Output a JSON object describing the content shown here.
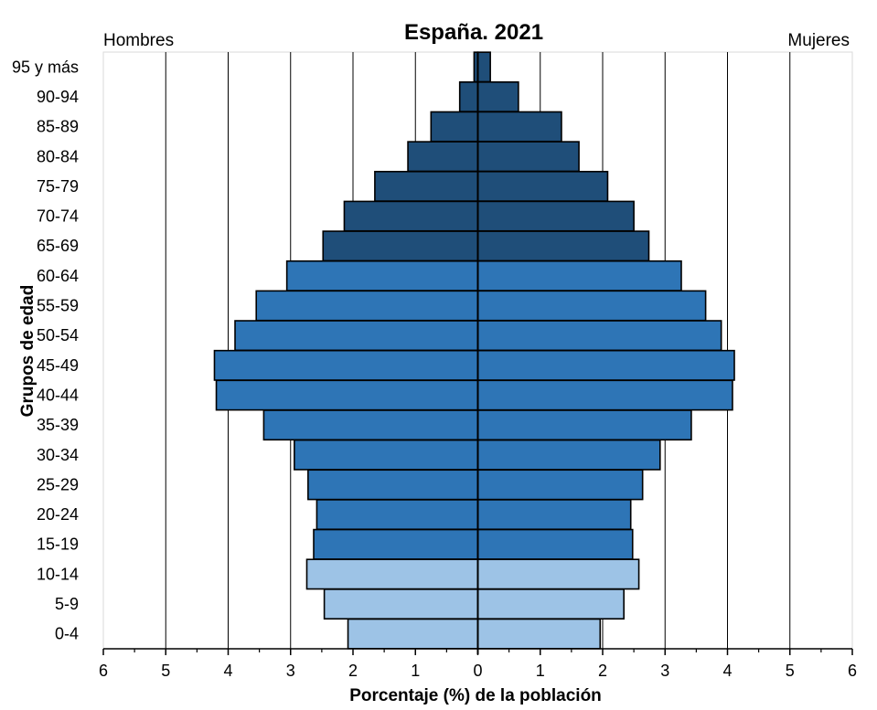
{
  "chart_data": {
    "type": "bar",
    "orientation": "horizontal",
    "title": "España. 2021",
    "xlabel": "Porcentaje (%) de la población",
    "ylabel": "Grupos de edad",
    "left_label": "Hombres",
    "right_label": "Mujeres",
    "xlim": [
      -6,
      6
    ],
    "xticks": [
      -6,
      -5,
      -4,
      -3,
      -2,
      -1,
      0,
      1,
      2,
      3,
      4,
      5,
      6
    ],
    "xtick_labels": [
      "6",
      "5",
      "4",
      "3",
      "2",
      "1",
      "0",
      "1",
      "2",
      "3",
      "4",
      "5",
      "6"
    ],
    "grid": "vertical",
    "categories": [
      "0-4",
      "5-9",
      "10-14",
      "15-19",
      "20-24",
      "25-29",
      "30-34",
      "35-39",
      "40-44",
      "45-49",
      "50-54",
      "55-59",
      "60-64",
      "65-69",
      "70-74",
      "75-79",
      "80-84",
      "85-89",
      "90-94",
      "95 y más"
    ],
    "series": [
      {
        "name": "Hombres",
        "values": [
          2.08,
          2.46,
          2.74,
          2.63,
          2.58,
          2.72,
          2.94,
          3.43,
          4.19,
          4.22,
          3.89,
          3.55,
          3.06,
          2.48,
          2.14,
          1.65,
          1.12,
          0.75,
          0.29,
          0.06
        ]
      },
      {
        "name": "Mujeres",
        "values": [
          1.96,
          2.34,
          2.58,
          2.48,
          2.45,
          2.64,
          2.92,
          3.42,
          4.08,
          4.11,
          3.9,
          3.65,
          3.26,
          2.74,
          2.5,
          2.08,
          1.62,
          1.34,
          0.65,
          0.2
        ]
      }
    ],
    "colors": {
      "young": "#9dc3e6",
      "adult": "#2e75b6",
      "old": "#1f4e79",
      "outline": "#000000",
      "grid": "#000000"
    },
    "color_groups": [
      "young",
      "young",
      "young",
      "adult",
      "adult",
      "adult",
      "adult",
      "adult",
      "adult",
      "adult",
      "adult",
      "adult",
      "adult",
      "old",
      "old",
      "old",
      "old",
      "old",
      "old",
      "old"
    ]
  }
}
